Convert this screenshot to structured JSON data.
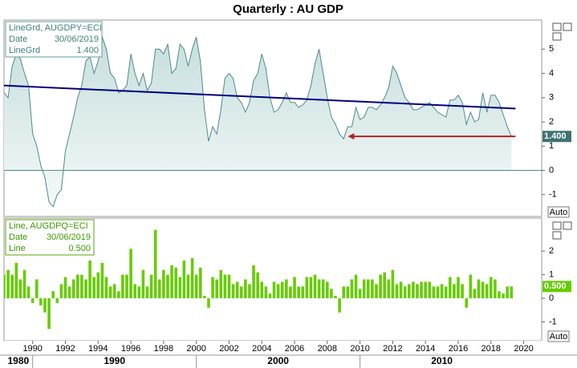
{
  "title": "Quarterly : AU GDP",
  "x_axis": {
    "xlim": [
      1988.25,
      2021.1
    ],
    "xticks": [
      1990,
      1992,
      1994,
      1996,
      1998,
      2000,
      2002,
      2004,
      2006,
      2008,
      2010,
      2012,
      2014,
      2016,
      2018,
      2020
    ],
    "decades": [
      1980,
      1990,
      2000,
      2010
    ],
    "x": [
      1988.25,
      1988.5,
      1988.75,
      1989,
      1989.25,
      1989.5,
      1989.75,
      1990,
      1990.25,
      1990.5,
      1990.75,
      1991,
      1991.25,
      1991.5,
      1991.75,
      1992,
      1992.25,
      1992.5,
      1992.75,
      1993,
      1993.25,
      1993.5,
      1993.75,
      1994,
      1994.25,
      1994.5,
      1994.75,
      1995,
      1995.25,
      1995.5,
      1995.75,
      1996,
      1996.25,
      1996.5,
      1996.75,
      1997,
      1997.25,
      1997.5,
      1997.75,
      1998,
      1998.25,
      1998.5,
      1998.75,
      1999,
      1999.25,
      1999.5,
      1999.75,
      2000,
      2000.25,
      2000.5,
      2000.75,
      2001,
      2001.25,
      2001.5,
      2001.75,
      2002,
      2002.25,
      2002.5,
      2002.75,
      2003,
      2003.25,
      2003.5,
      2003.75,
      2004,
      2004.25,
      2004.5,
      2004.75,
      2005,
      2005.25,
      2005.5,
      2005.75,
      2006,
      2006.25,
      2006.5,
      2006.75,
      2007,
      2007.25,
      2007.5,
      2007.75,
      2008,
      2008.25,
      2008.5,
      2008.75,
      2009,
      2009.25,
      2009.5,
      2009.75,
      2010,
      2010.25,
      2010.5,
      2010.75,
      2011,
      2011.25,
      2011.5,
      2011.75,
      2012,
      2012.25,
      2012.5,
      2012.75,
      2013,
      2013.25,
      2013.5,
      2013.75,
      2014,
      2014.25,
      2014.5,
      2014.75,
      2015,
      2015.25,
      2015.5,
      2015.75,
      2016,
      2016.25,
      2016.5,
      2016.75,
      2017,
      2017.25,
      2017.5,
      2017.75,
      2018,
      2018.25,
      2018.5,
      2018.75,
      2019,
      2019.25,
      2019.5
    ]
  },
  "chart_data": [
    {
      "type": "line",
      "legend": {
        "series": "LineGrd, AUGDPY=ECI",
        "date_label": "Date",
        "date": "30/06/2019",
        "name": "LineGrd"
      },
      "ylim": [
        -1.9,
        6.2
      ],
      "yticks": [
        -1,
        0,
        1,
        2,
        3,
        4,
        5
      ],
      "button": "Auto",
      "last_value": {
        "value": 1.4,
        "label": "1.400"
      },
      "series": [
        {
          "color": "#4f8a8a",
          "values": [
            3.2,
            3.0,
            4.3,
            4.8,
            4.6,
            4.0,
            3.5,
            1.5,
            1.0,
            0.2,
            -0.3,
            -1.3,
            -1.5,
            -1.0,
            -0.8,
            0.8,
            1.5,
            2.2,
            3.0,
            3.5,
            4.5,
            4.7,
            4.0,
            4.5,
            5.5,
            5.0,
            4.0,
            3.8,
            3.2,
            3.3,
            3.5,
            4.8,
            4.0,
            3.5,
            4.0,
            3.3,
            3.6,
            5.0,
            5.0,
            4.8,
            5.2,
            4.0,
            4.2,
            5.2,
            5.0,
            4.3,
            5.0,
            5.5,
            4.5,
            2.5,
            1.2,
            1.8,
            1.5,
            2.5,
            3.8,
            4.0,
            3.8,
            3.0,
            2.8,
            2.4,
            2.8,
            3.7,
            4.0,
            4.8,
            4.2,
            3.0,
            2.4,
            2.5,
            2.8,
            3.2,
            2.8,
            2.8,
            2.6,
            2.7,
            2.9,
            3.5,
            4.4,
            5.0,
            4.0,
            3.0,
            2.2,
            1.9,
            1.5,
            1.3,
            1.8,
            1.8,
            2.6,
            2.1,
            2.2,
            2.6,
            2.6,
            2.5,
            2.7,
            3.0,
            3.4,
            4.3,
            4.0,
            3.5,
            3.0,
            2.8,
            2.5,
            2.5,
            2.6,
            2.7,
            2.8,
            2.6,
            2.4,
            2.3,
            2.2,
            2.9,
            2.9,
            3.1,
            2.8,
            1.9,
            2.4,
            2.0,
            2.1,
            3.2,
            2.4,
            3.1,
            3.1,
            2.8,
            2.3,
            1.8,
            1.4
          ]
        }
      ],
      "trend": {
        "color": "#000080",
        "x": [
          1988.25,
          2019.5
        ],
        "values": [
          3.5,
          2.55
        ]
      },
      "arrow": {
        "color": "#b22222",
        "x": [
          2019.5,
          2009.4
        ]
      }
    },
    {
      "type": "bar",
      "legend": {
        "series": "Line, AUGDPQ=ECI",
        "date_label": "Date",
        "date": "30/06/2019",
        "name": "Line"
      },
      "ylim": [
        -1.8,
        3.4
      ],
      "yticks": [
        -1,
        0,
        1,
        2
      ],
      "button": "Auto",
      "last_value": {
        "value": 0.5,
        "label": "0.500"
      },
      "series": [
        {
          "color": "#66cc00",
          "values": [
            1.0,
            1.2,
            1.0,
            1.5,
            0.8,
            1.2,
            0.5,
            -0.2,
            0.8,
            -0.3,
            -0.6,
            -1.3,
            0.3,
            -0.2,
            0.6,
            0.9,
            0.5,
            0.8,
            1.0,
            1.0,
            0.8,
            1.6,
            0.9,
            1.1,
            1.5,
            0.9,
            0.5,
            0.6,
            0.3,
            1.0,
            1.0,
            2.1,
            0.6,
            0.5,
            1.2,
            0.5,
            1.0,
            2.9,
            0.8,
            1.2,
            1.0,
            1.4,
            1.3,
            0.9,
            1.6,
            1.0,
            1.7,
            1.0,
            1.3,
            0.1,
            -0.4,
            0.9,
            0.8,
            1.2,
            1.0,
            1.0,
            0.6,
            0.7,
            0.5,
            0.8,
            0.6,
            1.4,
            1.1,
            0.7,
            0.5,
            0.2,
            0.7,
            0.6,
            0.7,
            0.8,
            0.5,
            0.9,
            0.5,
            0.5,
            0.9,
            0.9,
            1.0,
            0.8,
            0.8,
            0.7,
            0.4,
            0.1,
            -0.6,
            0.5,
            0.5,
            0.8,
            1.0,
            0.4,
            0.8,
            0.8,
            0.8,
            0.6,
            1.0,
            1.1,
            0.8,
            1.2,
            0.6,
            0.7,
            0.5,
            0.6,
            0.7,
            0.6,
            0.7,
            0.7,
            0.7,
            0.5,
            0.5,
            0.6,
            0.5,
            0.9,
            0.6,
            0.9,
            0.6,
            -0.4,
            1.0,
            0.4,
            0.8,
            0.7,
            0.6,
            0.9,
            0.8,
            0.3,
            0.2,
            0.5,
            0.5
          ]
        }
      ]
    }
  ]
}
